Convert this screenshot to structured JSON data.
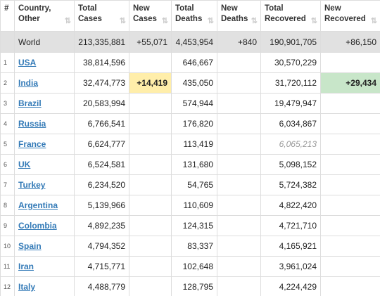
{
  "table": {
    "columns": [
      "#",
      "Country,\nOther",
      "Total\nCases",
      "New\nCases",
      "Total\nDeaths",
      "New\nDeaths",
      "Total\nRecovered",
      "New\nRecovered"
    ],
    "world": {
      "country": "World",
      "total_cases": "213,335,881",
      "new_cases": "+55,071",
      "total_deaths": "4,453,954",
      "new_deaths": "+840",
      "total_recovered": "190,901,705",
      "new_recovered": "+86,150"
    },
    "rows": [
      {
        "rank": "1",
        "country": "USA",
        "total_cases": "38,814,596",
        "total_deaths": "646,667",
        "total_recovered": "30,570,229"
      },
      {
        "rank": "2",
        "country": "India",
        "total_cases": "32,474,773",
        "new_cases": "+14,419",
        "total_deaths": "435,050",
        "total_recovered": "31,720,112",
        "new_recovered": "+29,434"
      },
      {
        "rank": "3",
        "country": "Brazil",
        "total_cases": "20,583,994",
        "total_deaths": "574,944",
        "total_recovered": "19,479,947"
      },
      {
        "rank": "4",
        "country": "Russia",
        "total_cases": "6,766,541",
        "total_deaths": "176,820",
        "total_recovered": "6,034,867"
      },
      {
        "rank": "5",
        "country": "France",
        "total_cases": "6,624,777",
        "total_deaths": "113,419",
        "total_recovered": "6,065,213",
        "recovered_estimated": true
      },
      {
        "rank": "6",
        "country": "UK",
        "total_cases": "6,524,581",
        "total_deaths": "131,680",
        "total_recovered": "5,098,152"
      },
      {
        "rank": "7",
        "country": "Turkey",
        "total_cases": "6,234,520",
        "total_deaths": "54,765",
        "total_recovered": "5,724,382"
      },
      {
        "rank": "8",
        "country": "Argentina",
        "total_cases": "5,139,966",
        "total_deaths": "110,609",
        "total_recovered": "4,822,420"
      },
      {
        "rank": "9",
        "country": "Colombia",
        "total_cases": "4,892,235",
        "total_deaths": "124,315",
        "total_recovered": "4,721,710"
      },
      {
        "rank": "10",
        "country": "Spain",
        "total_cases": "4,794,352",
        "total_deaths": "83,337",
        "total_recovered": "4,165,921"
      },
      {
        "rank": "11",
        "country": "Iran",
        "total_cases": "4,715,771",
        "total_deaths": "102,648",
        "total_recovered": "3,961,024"
      },
      {
        "rank": "12",
        "country": "Italy",
        "total_cases": "4,488,779",
        "total_deaths": "128,795",
        "total_recovered": "4,224,429"
      }
    ]
  }
}
